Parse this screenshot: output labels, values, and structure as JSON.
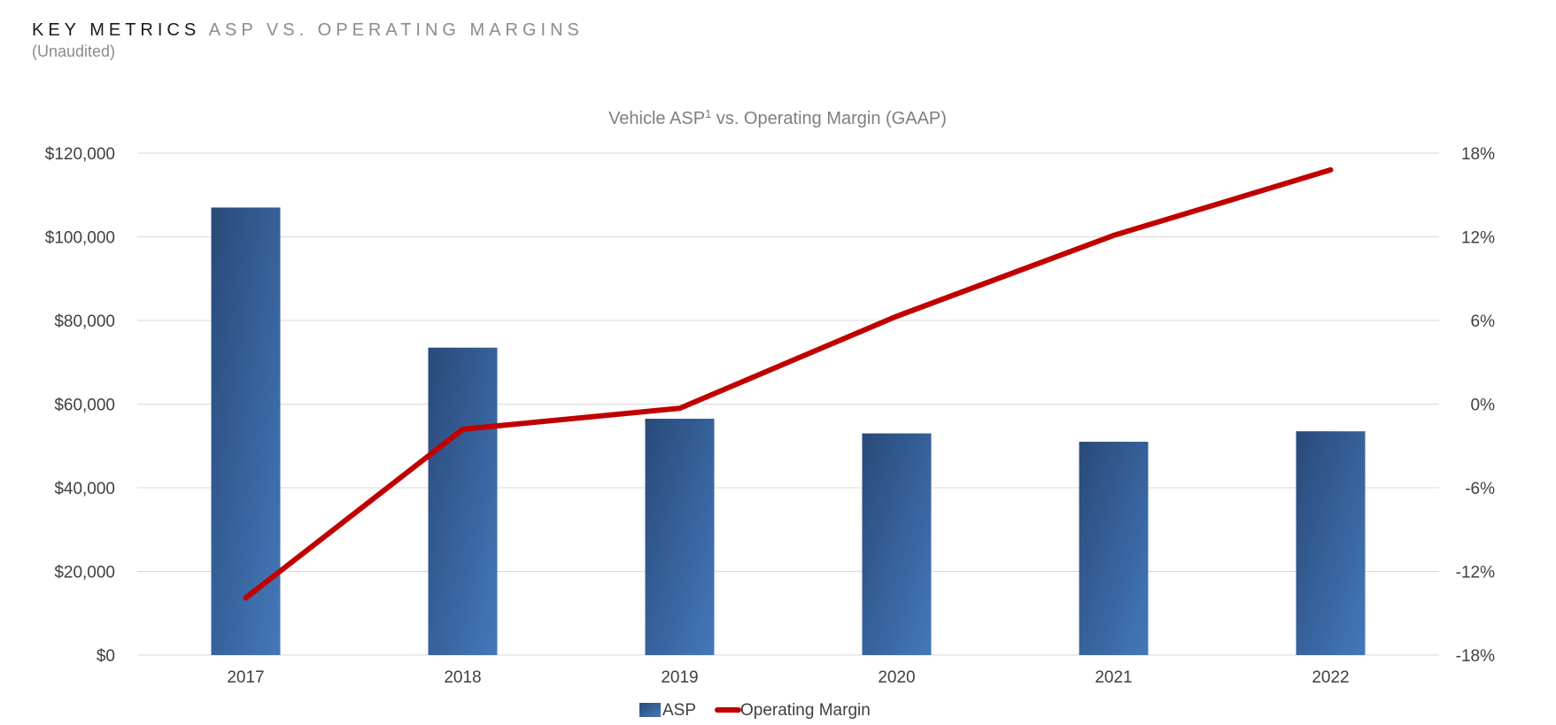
{
  "header": {
    "primary": "KEY METRICS",
    "secondary": "ASP VS. OPERATING MARGINS",
    "subtitle": "(Unaudited)"
  },
  "colors": {
    "bar_dark": "#294a79",
    "bar_light": "#4478bb",
    "line": "#c00000"
  },
  "chart_data": {
    "type": "bar",
    "title_main": "Vehicle ASP",
    "title_sup": "1",
    "title_rest": " vs. Operating Margin (GAAP)",
    "categories": [
      "2017",
      "2018",
      "2019",
      "2020",
      "2021",
      "2022"
    ],
    "series": [
      {
        "name": "ASP",
        "type": "bar",
        "axis": "left",
        "values": [
          107000,
          73500,
          56500,
          53000,
          51000,
          53500
        ]
      },
      {
        "name": "Operating Margin",
        "type": "line",
        "axis": "right",
        "values": [
          -13.9,
          -1.8,
          -0.3,
          6.3,
          12.1,
          16.8
        ]
      }
    ],
    "y_left": {
      "min": 0,
      "max": 120000,
      "ticks": [
        0,
        20000,
        40000,
        60000,
        80000,
        100000,
        120000
      ],
      "tick_labels": [
        "$0",
        "$20,000",
        "$40,000",
        "$60,000",
        "$80,000",
        "$100,000",
        "$120,000"
      ]
    },
    "y_right": {
      "min": -18,
      "max": 18,
      "ticks": [
        -18,
        -12,
        -6,
        0,
        6,
        12,
        18
      ],
      "tick_labels": [
        "-18%",
        "-12%",
        "-6%",
        "0%",
        "6%",
        "12%",
        "18%"
      ]
    },
    "grid": true,
    "legend_position": "bottom"
  }
}
